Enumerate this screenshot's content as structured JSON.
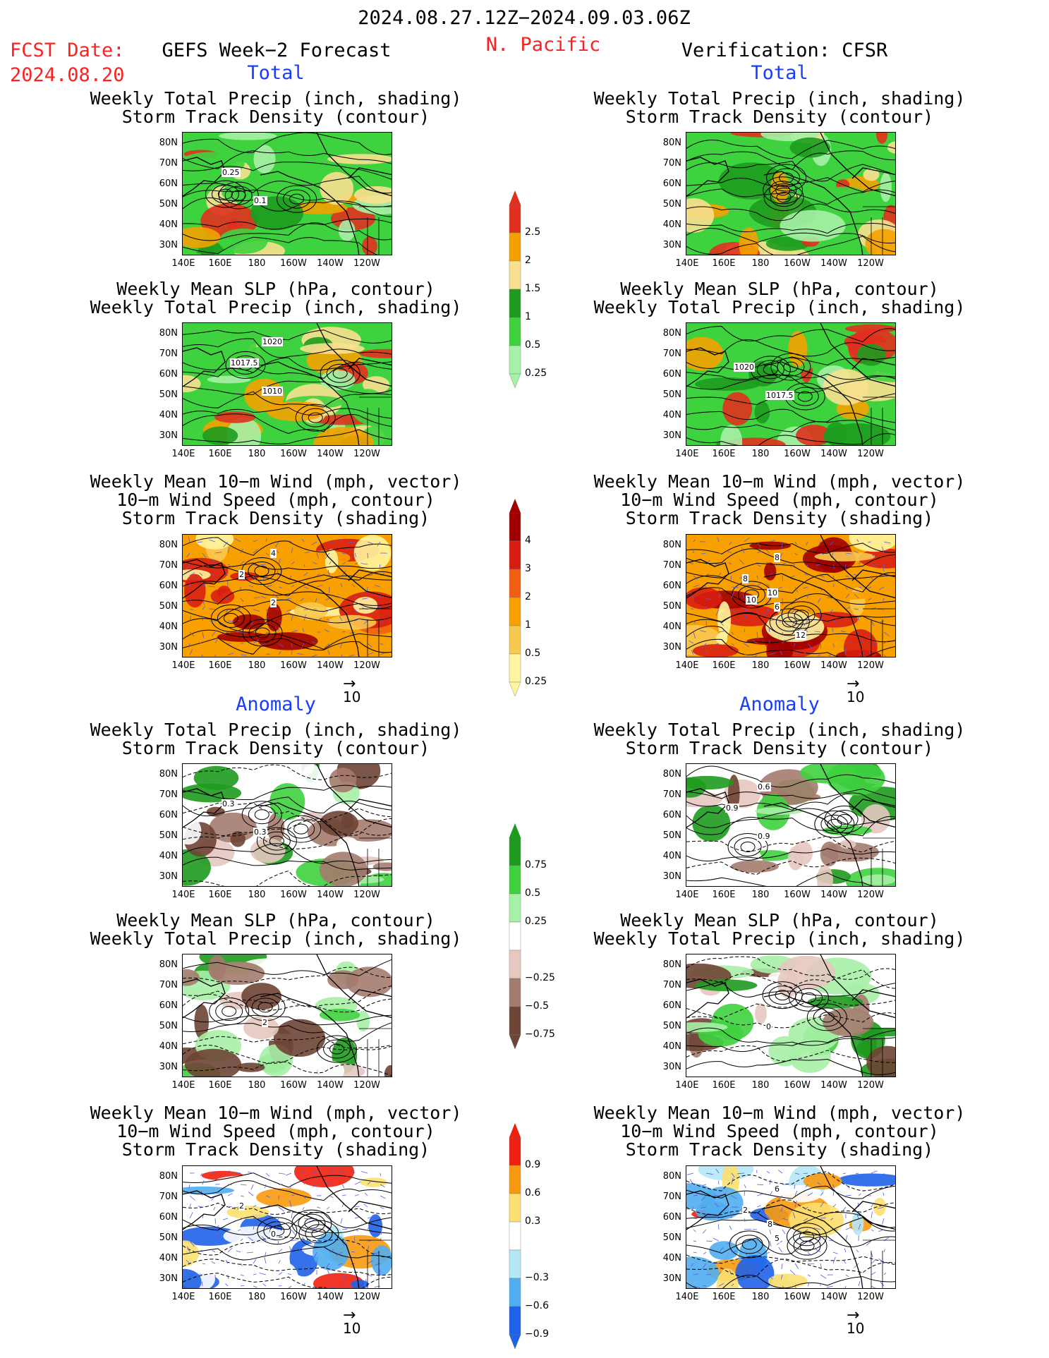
{
  "header": {
    "period": "2024.08.27.12Z−2024.09.03.06Z",
    "fcst_label": "FCST Date:",
    "fcst_date": "2024.08.20",
    "model": "GEFS Week−2 Forecast",
    "region": "N. Pacific",
    "verification": "Verification: CFSR"
  },
  "section_labels": {
    "total": "Total",
    "anomaly": "Anomaly"
  },
  "titles": {
    "precip_storm": [
      "Weekly Total Precip (inch, shading)",
      "Storm Track Density (contour)"
    ],
    "slp_precip": [
      "Weekly Mean SLP (hPa, contour)",
      "Weekly Total Precip (inch, shading)"
    ],
    "wind_storm": [
      "Weekly Mean 10−m Wind (mph, vector)",
      "10−m Wind Speed (mph, contour)",
      "Storm Track Density (shading)"
    ]
  },
  "axes": {
    "lat": [
      "80N",
      "70N",
      "60N",
      "50N",
      "40N",
      "30N"
    ],
    "lon": [
      "140E",
      "160E",
      "180",
      "160W",
      "140W",
      "120W"
    ]
  },
  "vector_ref": "10",
  "contour_labels": {
    "p1": [
      "0.1",
      "0.25"
    ],
    "p2": [
      "1010",
      "1017.5",
      "1020"
    ],
    "p3": [
      "2",
      "2",
      "4"
    ],
    "p4": [
      "0.3",
      "0.3"
    ],
    "p5": [
      "2"
    ],
    "p6": [
      "0",
      "2"
    ],
    "p8": [
      "1017.5",
      "1020"
    ],
    "p9": [
      "6",
      "8",
      "8",
      "10",
      "10",
      "12"
    ],
    "p10": [
      "0.9",
      "0.9",
      "0.6"
    ],
    "p11": [
      "0"
    ],
    "p12": [
      "5",
      "2",
      "6",
      "8"
    ]
  },
  "colorbars": {
    "precip_total": {
      "labels": [
        "2.5",
        "2",
        "1.5",
        "1",
        "0.5",
        "0.25"
      ],
      "colors": [
        "#e0301e",
        "#f4a100",
        "#f8e090",
        "#1e9b1e",
        "#3fd23f",
        "#a7f0a7"
      ]
    },
    "storm_total": {
      "labels": [
        "4",
        "3",
        "2",
        "1",
        "0.5",
        "0.25"
      ],
      "colors": [
        "#a00000",
        "#d81e10",
        "#f06010",
        "#f8a000",
        "#f8c850",
        "#fff5a0"
      ]
    },
    "precip_anom": {
      "labels": [
        "0.75",
        "0.5",
        "0.25",
        "−0.25",
        "−0.5",
        "−0.75"
      ],
      "colors": [
        "#1e9b1e",
        "#3fd23f",
        "#a7f0a7",
        "#ffffff",
        "#e6c8c0",
        "#a47b6e",
        "#6e4434"
      ]
    },
    "storm_anom": {
      "labels": [
        "0.9",
        "0.6",
        "0.3",
        "−0.3",
        "−0.6",
        "−0.9"
      ],
      "colors": [
        "#f02010",
        "#f89a10",
        "#fde070",
        "#ffffff",
        "#b4e8f8",
        "#50aef0",
        "#1e62e8"
      ]
    }
  }
}
